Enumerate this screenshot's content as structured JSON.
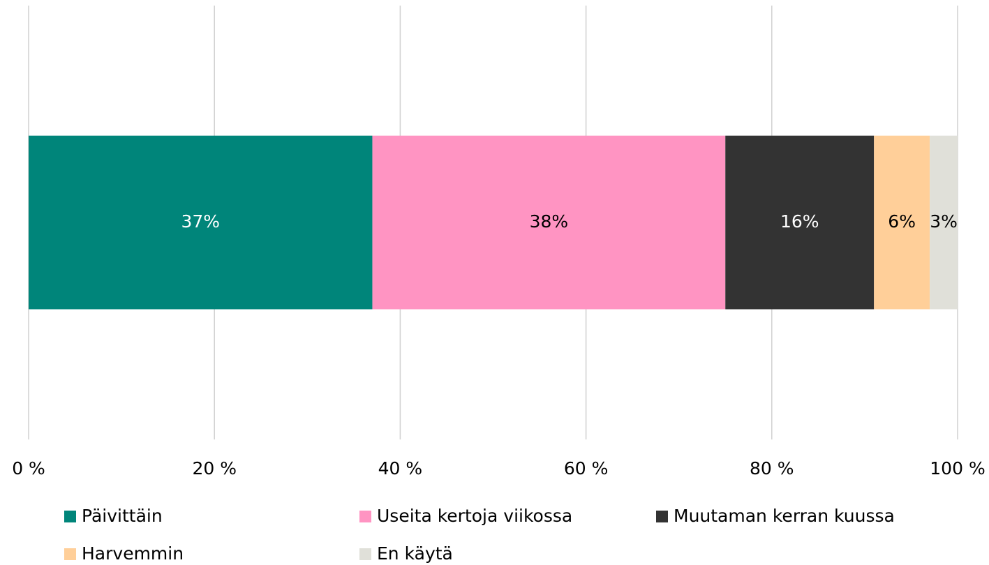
{
  "chart_data": {
    "type": "stacked_bar",
    "orientation": "horizontal",
    "categories": [
      null
    ],
    "series": [
      {
        "name": "Päivittäin",
        "color": "#00857a",
        "values": [
          37
        ],
        "value_labels": [
          "37%"
        ]
      },
      {
        "name": "Useita kertoja viikossa",
        "color": "#ff94c2",
        "values": [
          38
        ],
        "value_labels": [
          "38%"
        ]
      },
      {
        "name": "Muutaman kerran kuussa",
        "color": "#333333",
        "values": [
          16
        ],
        "value_labels": [
          "16%"
        ]
      },
      {
        "name": "Harvemmin",
        "color": "#ffcf99",
        "values": [
          6
        ],
        "value_labels": [
          "6%"
        ]
      },
      {
        "name": "En käytä",
        "color": "#e0e0d9",
        "values": [
          3
        ],
        "value_labels": [
          "3%"
        ]
      }
    ],
    "xlim": [
      0,
      100
    ],
    "xticks": [
      {
        "value": 0,
        "label": "0 %"
      },
      {
        "value": 20,
        "label": "20 %"
      },
      {
        "value": 40,
        "label": "40 %"
      },
      {
        "value": 60,
        "label": "60 %"
      },
      {
        "value": 80,
        "label": "80 %"
      },
      {
        "value": 100,
        "label": "100 %"
      }
    ],
    "grid": true,
    "legend": "bottom"
  }
}
